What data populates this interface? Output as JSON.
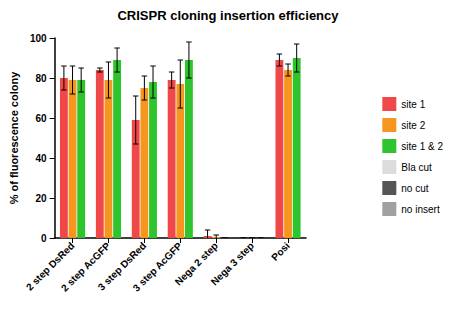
{
  "chart_data": {
    "type": "bar",
    "title": "CRISPR cloning insertion efficiency",
    "y_label": "% of fluorescence colony",
    "categories": [
      "2 step DsRed",
      "2 step AcGFP",
      "3 step DsRed",
      "3 step AcGFP",
      "Nega 2 step",
      "Nega 3 step",
      "Posi"
    ],
    "series": [
      {
        "name": "site 1",
        "color": "#f04848",
        "values": [
          80,
          84,
          59,
          79,
          1,
          0,
          89
        ],
        "errors": [
          6,
          1,
          12,
          4,
          3,
          0,
          3
        ]
      },
      {
        "name": "site 2",
        "color": "#f7961e",
        "values": [
          79,
          79,
          75,
          77,
          0.5,
          0,
          84
        ],
        "errors": [
          7,
          9,
          6,
          12,
          1,
          0,
          3
        ]
      },
      {
        "name": "site 1 & 2",
        "color": "#2ec42e",
        "values": [
          79,
          89,
          78,
          89,
          0,
          0,
          90
        ],
        "errors": [
          6,
          6,
          8,
          9,
          0,
          0,
          7
        ]
      },
      {
        "name": "Bla cut",
        "color": "#dcdcdc",
        "values": [
          null,
          null,
          null,
          null,
          null,
          null,
          null
        ]
      },
      {
        "name": "no cut",
        "color": "#555555",
        "values": [
          null,
          null,
          null,
          null,
          null,
          null,
          null
        ]
      },
      {
        "name": "no insert",
        "color": "#a0a0a0",
        "values": [
          null,
          null,
          null,
          null,
          null,
          null,
          null
        ]
      }
    ],
    "ylim": [
      0,
      100
    ],
    "yticks": [
      0,
      20,
      40,
      60,
      80,
      100
    ],
    "grid": false,
    "legend": "right"
  }
}
